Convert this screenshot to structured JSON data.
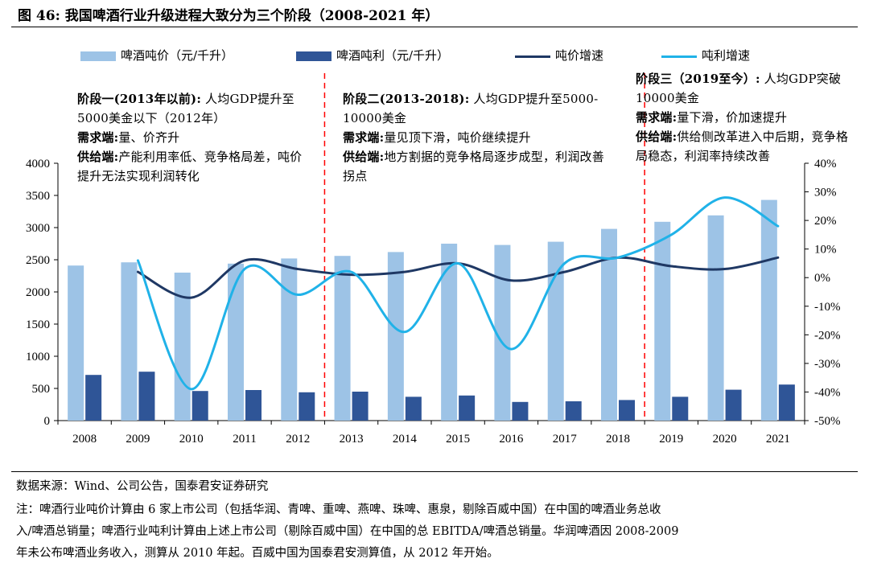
{
  "page_title": "图 46:  我国啤酒行业升级进程大致分为三个阶段（2008-2021 年）",
  "legend": {
    "price_bar": "啤酒吨价（元/千升）",
    "profit_bar": "啤酒吨利（元/千升）",
    "price_growth": "吨价增速",
    "profit_growth": "吨利增速"
  },
  "stages": [
    {
      "header": "阶段一(2013年以前):",
      "header_rest": " 人均GDP提升至5000美金以下（2012年）",
      "demand_label": "需求端:",
      "demand_text": "量、价齐升",
      "supply_label": "供给端:",
      "supply_text": "产能利用率低、竞争格局差，吨价提升无法实现利润转化"
    },
    {
      "header": "阶段二(2013-2018):",
      "header_rest": " 人均GDP提升至5000-10000美金",
      "demand_label": "需求端:",
      "demand_text": "量见顶下滑，吨价继续提升",
      "supply_label": "供给端:",
      "supply_text": "地方割据的竞争格局逐步成型，利润改善拐点"
    },
    {
      "header": "阶段三（2019至今）:",
      "header_rest": " 人均GDP突破10000美金",
      "demand_label": "需求端:",
      "demand_text": "量下滑，价加速提升",
      "supply_label": "供给端:",
      "supply_text": "供给侧改革进入中后期，竞争格局稳态，利润率持续改善"
    }
  ],
  "footer": {
    "source": "数据来源：Wind、公司公告，国泰君安证券研究",
    "note_line1": "注：啤酒行业吨价计算由 6 家上市公司（包括华润、青啤、重啤、燕啤、珠啤、惠泉，剔除百威中国）在中国的啤酒业务总收",
    "note_line2": "入/啤酒总销量；啤酒行业吨利计算由上述上市公司（剔除百威中国）在中国的总 EBITDA/啤酒总销量。华润啤酒因 2008-2009",
    "note_line3": "年未公布啤酒业务收入，测算从 2010 年起。百威中国为国泰君安测算值，从 2012 年开始。"
  },
  "chart_data": {
    "type": "bar",
    "categories": [
      "2008",
      "2009",
      "2010",
      "2011",
      "2012",
      "2013",
      "2014",
      "2015",
      "2016",
      "2017",
      "2018",
      "2019",
      "2020",
      "2021"
    ],
    "series": [
      {
        "name": "啤酒吨价（元/千升）",
        "kind": "bar",
        "axis": "left",
        "color": "#9dc3e6",
        "values": [
          2410,
          2460,
          2300,
          2440,
          2520,
          2560,
          2620,
          2750,
          2730,
          2780,
          2980,
          3090,
          3190,
          3430
        ]
      },
      {
        "name": "啤酒吨利（元/千升）",
        "kind": "bar",
        "axis": "left",
        "color": "#2f5597",
        "values": [
          710,
          760,
          460,
          475,
          440,
          450,
          370,
          390,
          290,
          300,
          320,
          370,
          480,
          560
        ]
      },
      {
        "name": "吨价增速",
        "kind": "line",
        "axis": "right",
        "color": "#1f3864",
        "values": [
          null,
          2,
          -7,
          6,
          3,
          1,
          2,
          5,
          -1,
          2,
          7,
          4,
          3,
          7
        ]
      },
      {
        "name": "吨利增速",
        "kind": "line",
        "axis": "right",
        "color": "#20b2e8",
        "values": [
          null,
          6,
          -39,
          3,
          -6,
          2,
          -19,
          5,
          -25,
          5,
          7,
          15,
          28,
          18
        ]
      }
    ],
    "left_axis": {
      "min": 0,
      "max": 4000,
      "step": 500,
      "ticks": [
        "0",
        "500",
        "1000",
        "1500",
        "2000",
        "2500",
        "3000",
        "3500",
        "4000"
      ]
    },
    "right_axis": {
      "min": -50,
      "max": 40,
      "step": 10,
      "ticks": [
        "-50%",
        "-40%",
        "-30%",
        "-20%",
        "-10%",
        "0%",
        "10%",
        "20%",
        "30%",
        "40%"
      ]
    },
    "stage_dividers_between": [
      [
        "2012",
        "2013"
      ],
      [
        "2018",
        "2019"
      ]
    ],
    "divider_color": "#ff0000"
  }
}
